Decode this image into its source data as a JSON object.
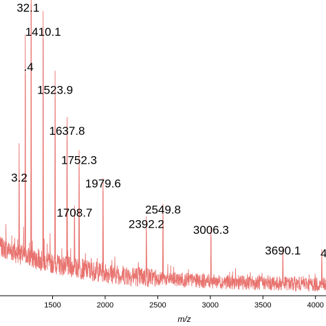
{
  "chart_data": {
    "type": "line",
    "title": "",
    "xlabel": "m/z",
    "ylabel": "",
    "xlim": [
      1000,
      4100
    ],
    "ylim": [
      0,
      100
    ],
    "grid": false,
    "line_color": "#e8736f",
    "x_ticks": [
      1500,
      2000,
      2500,
      3000,
      3500,
      4000
    ],
    "x_tick_labels": [
      "1500",
      "2000",
      "2500",
      "3000",
      "3500",
      "4000"
    ],
    "peaks": [
      {
        "x": 1296,
        "y": 100,
        "label": "32.1"
      },
      {
        "x": 1410.1,
        "y": 88,
        "label": "1410.1"
      },
      {
        "x": 1240,
        "y": 76,
        "label": ".4"
      },
      {
        "x": 1523.9,
        "y": 68,
        "label": "1523.9"
      },
      {
        "x": 1637.8,
        "y": 54,
        "label": "1637.8"
      },
      {
        "x": 1752.3,
        "y": 44,
        "label": "1752.3"
      },
      {
        "x": 1979.6,
        "y": 36,
        "label": "1979.6"
      },
      {
        "x": 1182,
        "y": 38,
        "label": "3.2"
      },
      {
        "x": 2549.8,
        "y": 27,
        "label": "2549.8"
      },
      {
        "x": 1708.7,
        "y": 26,
        "label": "1708.7"
      },
      {
        "x": 2392.2,
        "y": 22,
        "label": "2392.2"
      },
      {
        "x": 3006.3,
        "y": 20,
        "label": "3006.3"
      },
      {
        "x": 3690.1,
        "y": 13,
        "label": "3690.1"
      },
      {
        "x": 4060,
        "y": 12,
        "label": "4"
      }
    ]
  }
}
